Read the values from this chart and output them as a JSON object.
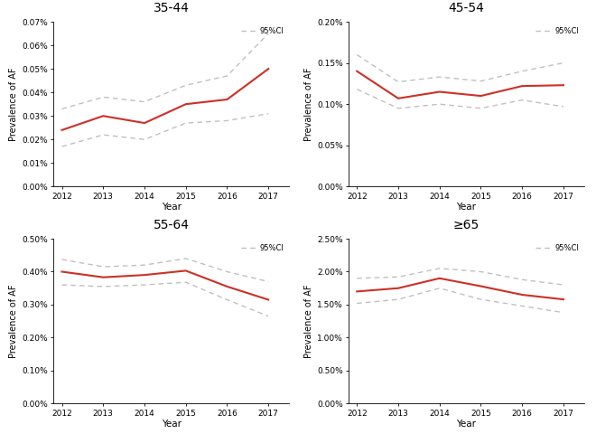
{
  "years": [
    2012,
    2013,
    2014,
    2015,
    2016,
    2017
  ],
  "panels": [
    {
      "title": "35-44",
      "red": [
        0.00024,
        0.0003,
        0.00027,
        0.00035,
        0.00037,
        0.0005
      ],
      "upper": [
        0.00033,
        0.00038,
        0.00036,
        0.00043,
        0.00047,
        0.00065
      ],
      "lower": [
        0.00017,
        0.00022,
        0.0002,
        0.00027,
        0.00028,
        0.00031
      ],
      "ylim": [
        0.0,
        0.0007
      ],
      "yticks": [
        0.0,
        0.0001,
        0.0002,
        0.0003,
        0.0004,
        0.0005,
        0.0006,
        0.0007
      ],
      "yticklabels": [
        "0.00%",
        "0.01%",
        "0.02%",
        "0.03%",
        "0.04%",
        "0.05%",
        "0.06%",
        "0.07%"
      ]
    },
    {
      "title": "45-54",
      "red": [
        0.0014,
        0.00107,
        0.00115,
        0.0011,
        0.00122,
        0.00123
      ],
      "upper": [
        0.0016,
        0.00127,
        0.00133,
        0.00128,
        0.0014,
        0.0015
      ],
      "lower": [
        0.00118,
        0.00095,
        0.001,
        0.00095,
        0.00105,
        0.00097
      ],
      "ylim": [
        0.0,
        0.002
      ],
      "yticks": [
        0.0,
        0.0005,
        0.001,
        0.0015,
        0.002
      ],
      "yticklabels": [
        "0.00%",
        "0.05%",
        "0.10%",
        "0.15%",
        "0.20%"
      ]
    },
    {
      "title": "55-64",
      "red": [
        0.004,
        0.00383,
        0.0039,
        0.00403,
        0.00355,
        0.00315
      ],
      "upper": [
        0.00437,
        0.00415,
        0.0042,
        0.0044,
        0.004,
        0.0037
      ],
      "lower": [
        0.0036,
        0.00355,
        0.0036,
        0.00368,
        0.00315,
        0.00265
      ],
      "ylim": [
        0.0,
        0.005
      ],
      "yticks": [
        0.0,
        0.001,
        0.002,
        0.003,
        0.004,
        0.005
      ],
      "yticklabels": [
        "0.00%",
        "0.10%",
        "0.20%",
        "0.30%",
        "0.40%",
        "0.50%"
      ]
    },
    {
      "title": "≥65",
      "red": [
        0.017,
        0.0175,
        0.019,
        0.0178,
        0.0165,
        0.0158
      ],
      "upper": [
        0.019,
        0.0192,
        0.0205,
        0.02,
        0.0188,
        0.018
      ],
      "lower": [
        0.0152,
        0.0158,
        0.0175,
        0.0158,
        0.0148,
        0.0138
      ],
      "ylim": [
        0.0,
        0.025
      ],
      "yticks": [
        0.0,
        0.005,
        0.01,
        0.015,
        0.02,
        0.025
      ],
      "yticklabels": [
        "0.00%",
        "0.50%",
        "1.00%",
        "1.50%",
        "2.00%",
        "2.50%"
      ]
    }
  ],
  "red_color": "#cd3026",
  "ci_color": "#c0c0c0",
  "bg_color": "#ffffff",
  "ylabel": "Prevalence of AF",
  "xlabel": "Year",
  "legend_label": "95%CI",
  "title_fontsize": 10,
  "tick_fontsize": 6.5,
  "label_fontsize": 7.5,
  "ylabel_fontsize": 7
}
